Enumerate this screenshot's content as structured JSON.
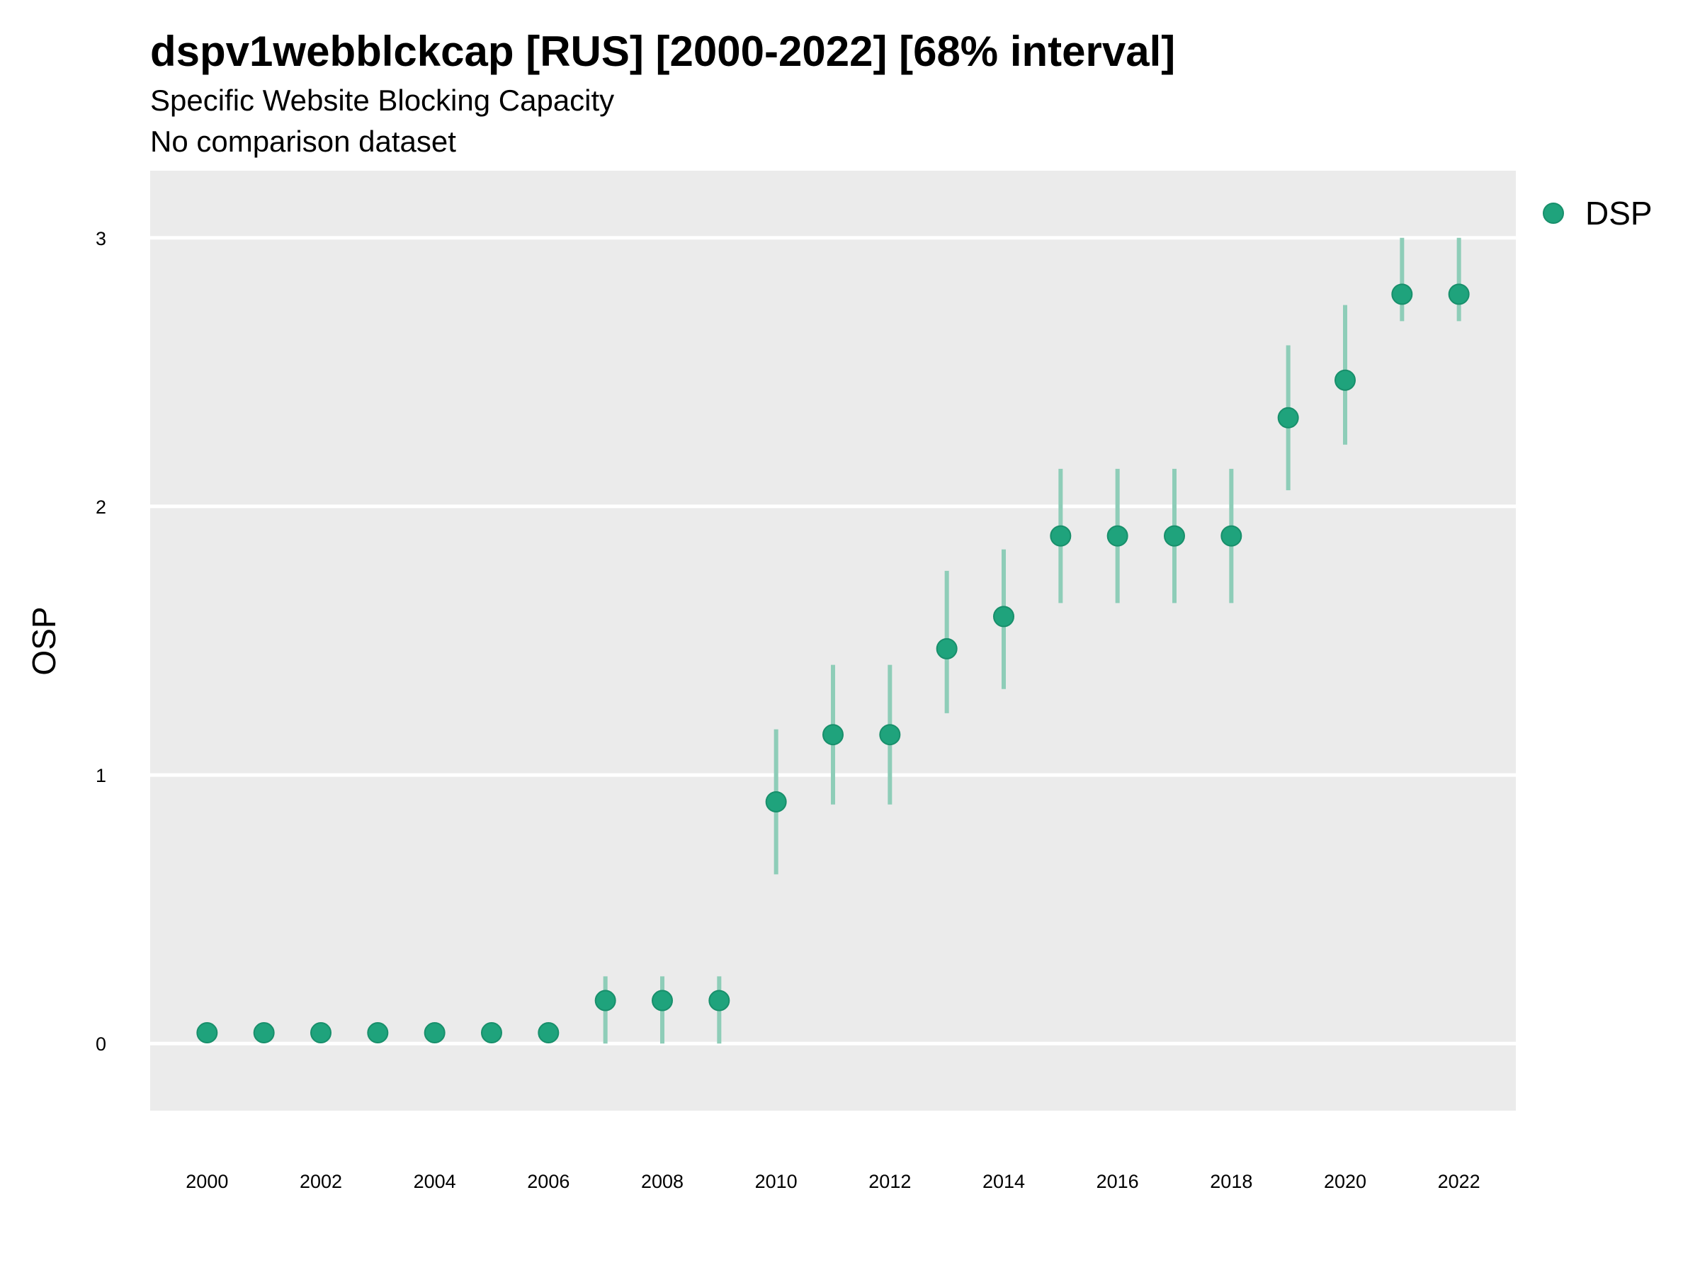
{
  "chart_data": {
    "type": "scatter",
    "title": "dspv1webblckcap [RUS] [2000-2022] [68% interval]",
    "subtitle": "Specific Website Blocking Capacity",
    "caption_line": "No comparison dataset",
    "xlabel": "",
    "ylabel": "OSP",
    "xlim": [
      1999,
      2023
    ],
    "ylim": [
      -0.25,
      3.25
    ],
    "x_ticks": [
      2000,
      2002,
      2004,
      2006,
      2008,
      2010,
      2012,
      2014,
      2016,
      2018,
      2020,
      2022
    ],
    "y_ticks": [
      0,
      1,
      2,
      3
    ],
    "grid": "horizontal",
    "legend_position": "right",
    "colors": {
      "point": "#1fa37c",
      "interval": "#8ecdb8",
      "panel": "#ebebeb",
      "grid": "#ffffff"
    },
    "series": [
      {
        "name": "DSP",
        "x": [
          2000,
          2001,
          2002,
          2003,
          2004,
          2005,
          2006,
          2007,
          2008,
          2009,
          2010,
          2011,
          2012,
          2013,
          2014,
          2015,
          2016,
          2017,
          2018,
          2019,
          2020,
          2021,
          2022
        ],
        "y": [
          0.04,
          0.04,
          0.04,
          0.04,
          0.04,
          0.04,
          0.04,
          0.16,
          0.16,
          0.16,
          0.9,
          1.15,
          1.15,
          1.47,
          1.59,
          1.89,
          1.89,
          1.89,
          1.89,
          2.33,
          2.47,
          2.79,
          2.79
        ],
        "lower": [
          0.04,
          0.04,
          0.04,
          0.04,
          0.04,
          0.04,
          0.04,
          0.0,
          0.0,
          0.0,
          0.63,
          0.89,
          0.89,
          1.23,
          1.32,
          1.64,
          1.64,
          1.64,
          1.64,
          2.06,
          2.23,
          2.69,
          2.69
        ],
        "upper": [
          0.04,
          0.04,
          0.04,
          0.04,
          0.04,
          0.04,
          0.04,
          0.25,
          0.25,
          0.25,
          1.17,
          1.41,
          1.41,
          1.76,
          1.84,
          2.14,
          2.14,
          2.14,
          2.14,
          2.6,
          2.75,
          3.0,
          3.0
        ]
      }
    ]
  }
}
